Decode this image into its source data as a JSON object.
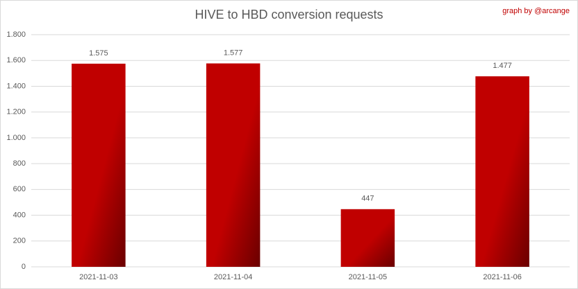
{
  "chart_data": {
    "type": "bar",
    "title": "HIVE to HBD conversion requests",
    "annotation": "graph by @arcange",
    "categories": [
      "2021-11-03",
      "2021-11-04",
      "2021-11-05",
      "2021-11-06"
    ],
    "values": [
      1575,
      1577,
      447,
      1477
    ],
    "value_labels": [
      "1.575",
      "1.577",
      "447",
      "1.477"
    ],
    "color": "#c00000",
    "ylim": [
      0,
      1800
    ],
    "yticks": [
      0,
      200,
      400,
      600,
      800,
      {
        "value": 1000,
        "label": "1.000"
      },
      {
        "value": 1200,
        "label": "1.200"
      },
      {
        "value": 1400,
        "label": "1.400"
      },
      {
        "value": 1600,
        "label": "1.600"
      },
      {
        "value": 1800,
        "label": "1.800"
      }
    ],
    "grid": true
  }
}
